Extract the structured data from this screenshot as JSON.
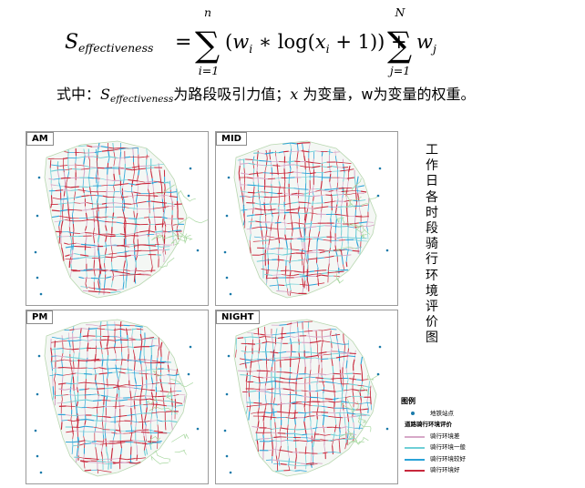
{
  "formula": {
    "lhs_main": "S",
    "lhs_sub": "effectiveness",
    "sum1_top": "n",
    "sum1_bottom": "i=1",
    "term1": "(w i ∗ log(x i + 1))",
    "sum2_top": "N",
    "sum2_bottom": "j=1",
    "term2": "w j"
  },
  "explanation": {
    "prefix": "式中：",
    "var_main": "S",
    "var_sub": "effectiveness",
    "text1": "为路段吸引力值；",
    "var_x": "x",
    "text2": " 为变量，w为变量的权重。"
  },
  "panels": [
    {
      "label": "AM"
    },
    {
      "label": "MID"
    },
    {
      "label": "PM"
    },
    {
      "label": "NIGHT"
    }
  ],
  "side_title_chars": [
    "工",
    "作",
    "日",
    "各",
    "时",
    "段",
    "骑",
    "行",
    "环",
    "境",
    "评",
    "价",
    "图"
  ],
  "legend": {
    "title": "图例",
    "metro_label": "地铁站点",
    "group_label": "道路骑行环境评价",
    "items": [
      {
        "label": "骑行环境差",
        "color": "#d7a8c8"
      },
      {
        "label": "骑行环境一般",
        "color": "#6fcfd6"
      },
      {
        "label": "骑行环境较好",
        "color": "#2aa3d8"
      },
      {
        "label": "骑行环境好",
        "color": "#c8283c"
      }
    ],
    "metro_color": "#1a7aaa"
  }
}
